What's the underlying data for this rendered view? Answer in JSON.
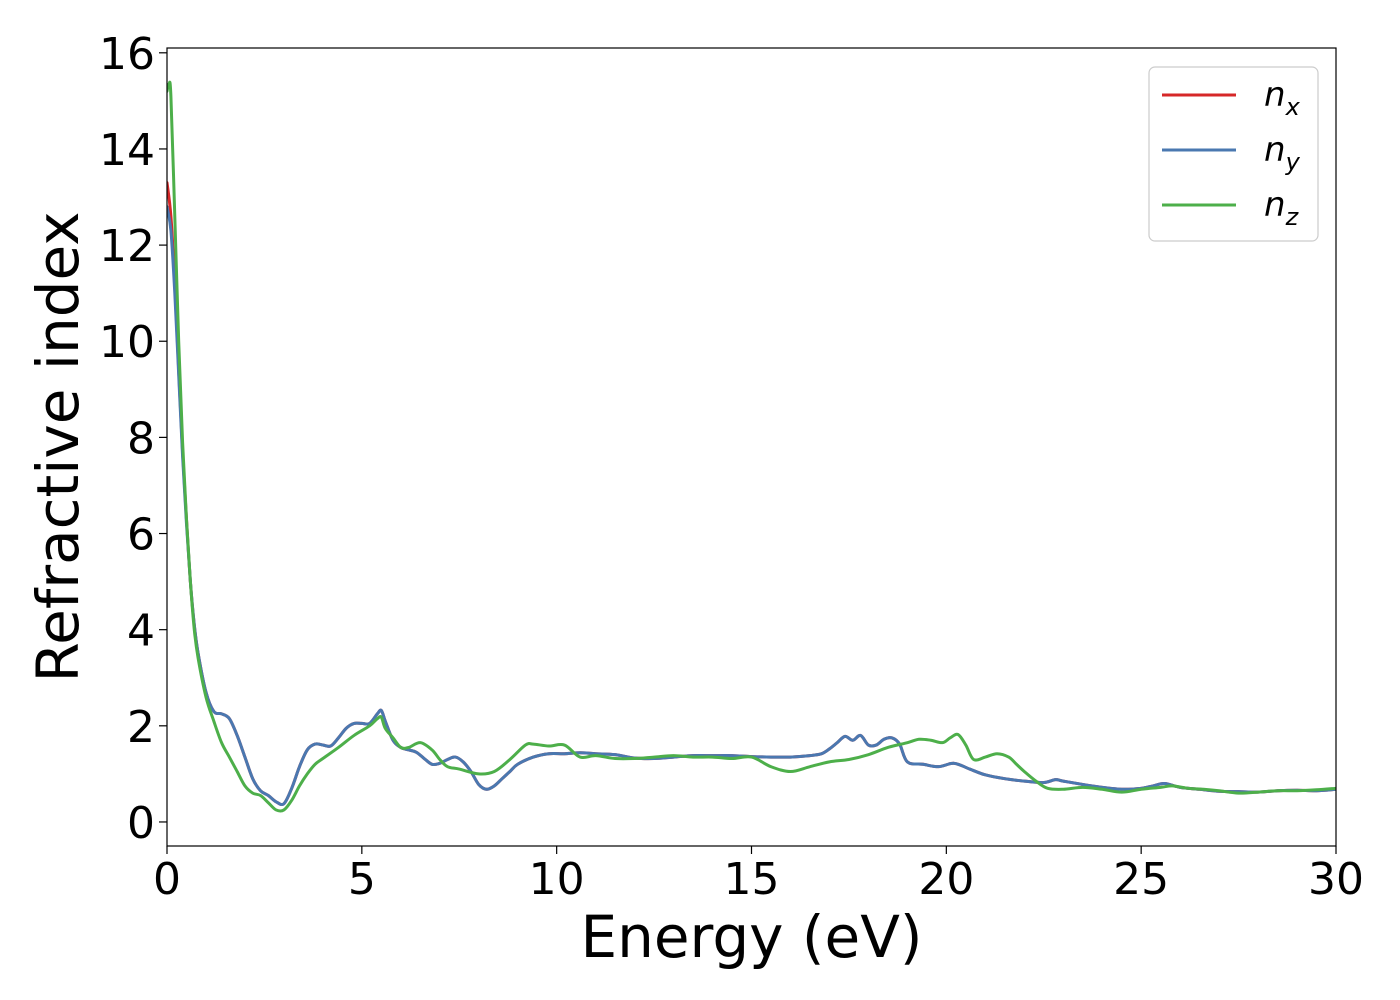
{
  "chart_data": {
    "type": "line",
    "xlabel": "Energy (eV)",
    "ylabel": "Refractive index",
    "xlim": [
      0,
      30
    ],
    "ylim": [
      -0.5,
      16.1
    ],
    "xticks": [
      0,
      5,
      10,
      15,
      20,
      25,
      30
    ],
    "yticks": [
      0,
      2,
      4,
      6,
      8,
      10,
      12,
      14,
      16
    ],
    "grid": false,
    "legend_position": "top-right",
    "series": [
      {
        "name": "n",
        "subscript": "x",
        "color": "#d62728",
        "x": [
          0,
          0.1,
          0.2,
          0.3,
          0.4,
          0.5,
          0.6,
          0.7,
          0.8,
          1.0,
          1.2,
          1.4,
          1.6,
          1.8,
          2.0,
          2.2,
          2.4,
          2.6,
          2.8,
          3.0,
          3.2,
          3.4,
          3.6,
          3.8,
          4.0,
          4.2,
          4.4,
          4.6,
          4.8,
          5.0,
          5.2,
          5.4,
          5.5,
          5.6,
          5.8,
          6.0,
          6.2,
          6.4,
          6.6,
          6.8,
          7.0,
          7.2,
          7.4,
          7.6,
          7.8,
          8.0,
          8.2,
          8.4,
          8.6,
          8.8,
          9.0,
          9.4,
          9.8,
          10.2,
          10.6,
          11.0,
          11.5,
          12.0,
          12.5,
          13.0,
          13.5,
          14.0,
          14.5,
          15.0,
          15.5,
          16.0,
          16.5,
          16.8,
          17.0,
          17.2,
          17.4,
          17.6,
          17.8,
          18.0,
          18.2,
          18.4,
          18.6,
          18.8,
          19.0,
          19.4,
          19.8,
          20.2,
          20.6,
          21.0,
          21.5,
          22.0,
          22.5,
          22.8,
          23.0,
          23.5,
          24.0,
          24.5,
          25.0,
          25.3,
          25.6,
          26.0,
          26.5,
          27.0,
          27.5,
          28.0,
          28.5,
          29.0,
          29.5,
          30.0
        ],
        "values": [
          13.3,
          12.6,
          11.2,
          9.4,
          7.7,
          6.3,
          5.0,
          4.1,
          3.5,
          2.7,
          2.3,
          2.25,
          2.15,
          1.8,
          1.35,
          0.9,
          0.65,
          0.55,
          0.42,
          0.38,
          0.7,
          1.15,
          1.5,
          1.62,
          1.6,
          1.58,
          1.75,
          1.95,
          2.05,
          2.05,
          2.05,
          2.25,
          2.32,
          2.1,
          1.7,
          1.55,
          1.5,
          1.45,
          1.32,
          1.2,
          1.22,
          1.3,
          1.35,
          1.25,
          1.05,
          0.78,
          0.68,
          0.75,
          0.9,
          1.05,
          1.2,
          1.35,
          1.42,
          1.42,
          1.44,
          1.42,
          1.4,
          1.33,
          1.32,
          1.35,
          1.38,
          1.38,
          1.38,
          1.36,
          1.35,
          1.35,
          1.38,
          1.42,
          1.52,
          1.65,
          1.78,
          1.7,
          1.8,
          1.6,
          1.6,
          1.72,
          1.75,
          1.62,
          1.25,
          1.2,
          1.15,
          1.22,
          1.1,
          0.98,
          0.9,
          0.85,
          0.82,
          0.88,
          0.85,
          0.78,
          0.72,
          0.68,
          0.7,
          0.75,
          0.8,
          0.72,
          0.68,
          0.64,
          0.63,
          0.62,
          0.65,
          0.66,
          0.65,
          0.68
        ]
      },
      {
        "name": "n",
        "subscript": "y",
        "color": "#4a78b0",
        "x": [
          0,
          0.1,
          0.2,
          0.3,
          0.4,
          0.5,
          0.6,
          0.7,
          0.8,
          1.0,
          1.2,
          1.4,
          1.6,
          1.8,
          2.0,
          2.2,
          2.4,
          2.6,
          2.8,
          3.0,
          3.2,
          3.4,
          3.6,
          3.8,
          4.0,
          4.2,
          4.4,
          4.6,
          4.8,
          5.0,
          5.2,
          5.4,
          5.5,
          5.6,
          5.8,
          6.0,
          6.2,
          6.4,
          6.6,
          6.8,
          7.0,
          7.2,
          7.4,
          7.6,
          7.8,
          8.0,
          8.2,
          8.4,
          8.6,
          8.8,
          9.0,
          9.4,
          9.8,
          10.2,
          10.6,
          11.0,
          11.5,
          12.0,
          12.5,
          13.0,
          13.5,
          14.0,
          14.5,
          15.0,
          15.5,
          16.0,
          16.5,
          16.8,
          17.0,
          17.2,
          17.4,
          17.6,
          17.8,
          18.0,
          18.2,
          18.4,
          18.6,
          18.8,
          19.0,
          19.4,
          19.8,
          20.2,
          20.6,
          21.0,
          21.5,
          22.0,
          22.5,
          22.8,
          23.0,
          23.5,
          24.0,
          24.5,
          25.0,
          25.3,
          25.6,
          26.0,
          26.5,
          27.0,
          27.5,
          28.0,
          28.5,
          29.0,
          29.5,
          30.0
        ],
        "values": [
          12.8,
          12.3,
          11.0,
          9.3,
          7.6,
          6.2,
          5.0,
          4.1,
          3.5,
          2.7,
          2.3,
          2.25,
          2.15,
          1.8,
          1.35,
          0.9,
          0.65,
          0.55,
          0.42,
          0.38,
          0.7,
          1.15,
          1.5,
          1.62,
          1.6,
          1.58,
          1.75,
          1.95,
          2.05,
          2.05,
          2.05,
          2.25,
          2.32,
          2.1,
          1.7,
          1.55,
          1.5,
          1.45,
          1.32,
          1.2,
          1.22,
          1.3,
          1.35,
          1.25,
          1.05,
          0.78,
          0.68,
          0.75,
          0.9,
          1.05,
          1.2,
          1.35,
          1.42,
          1.42,
          1.44,
          1.42,
          1.4,
          1.33,
          1.32,
          1.35,
          1.38,
          1.38,
          1.38,
          1.36,
          1.35,
          1.35,
          1.38,
          1.42,
          1.52,
          1.65,
          1.78,
          1.7,
          1.8,
          1.6,
          1.6,
          1.72,
          1.75,
          1.62,
          1.25,
          1.2,
          1.15,
          1.22,
          1.1,
          0.98,
          0.9,
          0.85,
          0.82,
          0.88,
          0.85,
          0.78,
          0.72,
          0.68,
          0.7,
          0.75,
          0.8,
          0.72,
          0.68,
          0.64,
          0.63,
          0.62,
          0.65,
          0.66,
          0.65,
          0.68
        ]
      },
      {
        "name": "n",
        "subscript": "z",
        "color": "#4daf4a",
        "x": [
          0,
          0.05,
          0.1,
          0.2,
          0.3,
          0.4,
          0.5,
          0.6,
          0.7,
          0.8,
          1.0,
          1.2,
          1.4,
          1.6,
          1.8,
          2.0,
          2.2,
          2.4,
          2.6,
          2.8,
          3.0,
          3.2,
          3.4,
          3.6,
          3.8,
          4.0,
          4.4,
          4.8,
          5.2,
          5.4,
          5.5,
          5.6,
          5.8,
          6.0,
          6.2,
          6.5,
          6.8,
          7.0,
          7.2,
          7.5,
          8.0,
          8.4,
          8.8,
          9.2,
          9.4,
          9.8,
          10.2,
          10.6,
          11.0,
          11.5,
          12.0,
          12.5,
          13.0,
          13.5,
          14.0,
          14.5,
          15.0,
          15.5,
          16.0,
          16.5,
          17.0,
          17.5,
          18.0,
          18.5,
          19.0,
          19.3,
          19.6,
          19.9,
          20.1,
          20.3,
          20.5,
          20.7,
          21.0,
          21.3,
          21.6,
          21.8,
          22.0,
          22.3,
          22.6,
          23.0,
          23.5,
          24.0,
          24.5,
          25.0,
          25.5,
          25.8,
          26.2,
          26.6,
          27.0,
          27.5,
          28.0,
          28.5,
          29.0,
          29.5,
          30.0
        ],
        "values": [
          15.2,
          15.35,
          15.1,
          12.6,
          10.0,
          7.9,
          6.3,
          5.0,
          4.0,
          3.4,
          2.6,
          2.1,
          1.65,
          1.35,
          1.05,
          0.75,
          0.6,
          0.55,
          0.4,
          0.25,
          0.25,
          0.45,
          0.75,
          1.0,
          1.2,
          1.32,
          1.55,
          1.8,
          2.0,
          2.15,
          2.18,
          1.95,
          1.75,
          1.55,
          1.55,
          1.65,
          1.5,
          1.3,
          1.15,
          1.1,
          1.0,
          1.05,
          1.3,
          1.6,
          1.62,
          1.58,
          1.6,
          1.35,
          1.38,
          1.32,
          1.32,
          1.35,
          1.38,
          1.35,
          1.35,
          1.32,
          1.35,
          1.15,
          1.05,
          1.15,
          1.25,
          1.3,
          1.4,
          1.55,
          1.65,
          1.72,
          1.7,
          1.65,
          1.75,
          1.82,
          1.6,
          1.3,
          1.35,
          1.42,
          1.35,
          1.2,
          1.05,
          0.85,
          0.7,
          0.68,
          0.72,
          0.68,
          0.62,
          0.68,
          0.72,
          0.75,
          0.7,
          0.68,
          0.65,
          0.6,
          0.62,
          0.65,
          0.65,
          0.67,
          0.7
        ]
      }
    ]
  }
}
